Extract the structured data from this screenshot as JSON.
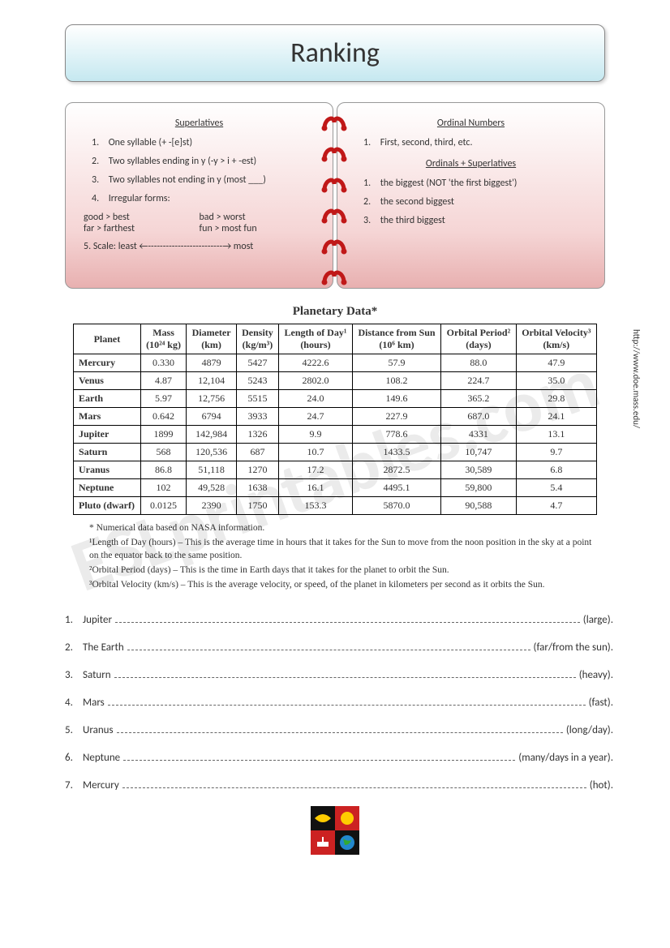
{
  "title": "Ranking",
  "watermark_text": "ESLprintables.com",
  "notebook": {
    "left": {
      "heading": "Superlatives",
      "items": [
        "One syllable (+ -[e]st)",
        "Two syllables ending in y (-y > i + -est)",
        "Two syllables not ending in y (most ___)",
        "Irregular forms:"
      ],
      "irregular": [
        [
          "good > best",
          "bad > worst"
        ],
        [
          "far > farthest",
          "fun > most fun"
        ]
      ],
      "scale_label": "5.",
      "scale_text": "Scale: least ←-------------------------→ most"
    },
    "right": {
      "heading1": "Ordinal Numbers",
      "ord_items": [
        "First, second, third, etc."
      ],
      "heading2": "Ordinals + Superlatives",
      "sup_items": [
        "the biggest (NOT 'the first biggest')",
        "the second biggest",
        "the third biggest"
      ]
    }
  },
  "table": {
    "title": "Planetary Data*",
    "source": "http://www.doe.mass.edu/",
    "columns": [
      {
        "h1": "Planet",
        "h2": ""
      },
      {
        "h1": "Mass",
        "h2": "(10²⁴ kg)"
      },
      {
        "h1": "Diameter",
        "h2": "(km)"
      },
      {
        "h1": "Density",
        "h2": "(kg/m³)"
      },
      {
        "h1": "Length of Day¹",
        "h2": "(hours)"
      },
      {
        "h1": "Distance from Sun",
        "h2": "(10⁶ km)"
      },
      {
        "h1": "Orbital Period²",
        "h2": "(days)"
      },
      {
        "h1": "Orbital Velocity³",
        "h2": "(km/s)"
      }
    ],
    "rows": [
      [
        "Mercury",
        "0.330",
        "4879",
        "5427",
        "4222.6",
        "57.9",
        "88.0",
        "47.9"
      ],
      [
        "Venus",
        "4.87",
        "12,104",
        "5243",
        "2802.0",
        "108.2",
        "224.7",
        "35.0"
      ],
      [
        "Earth",
        "5.97",
        "12,756",
        "5515",
        "24.0",
        "149.6",
        "365.2",
        "29.8"
      ],
      [
        "Mars",
        "0.642",
        "6794",
        "3933",
        "24.7",
        "227.9",
        "687.0",
        "24.1"
      ],
      [
        "Jupiter",
        "1899",
        "142,984",
        "1326",
        "9.9",
        "778.6",
        "4331",
        "13.1"
      ],
      [
        "Saturn",
        "568",
        "120,536",
        "687",
        "10.7",
        "1433.5",
        "10,747",
        "9.7"
      ],
      [
        "Uranus",
        "86.8",
        "51,118",
        "1270",
        "17.2",
        "2872.5",
        "30,589",
        "6.8"
      ],
      [
        "Neptune",
        "102",
        "49,528",
        "1638",
        "16.1",
        "4495.1",
        "59,800",
        "5.4"
      ],
      [
        "Pluto (dwarf)",
        "0.0125",
        "2390",
        "1750",
        "153.3",
        "5870.0",
        "90,588",
        "4.7"
      ]
    ],
    "star_note": "* Numerical data based on NASA information.",
    "footnotes": [
      "¹Length of Day (hours) – This is the average time in hours that it takes for the Sun to move from the noon position in the sky at a point on the equator back to the same position.",
      "²Orbital Period (days) – This is the time in Earth days that it takes for the planet to orbit the Sun.",
      "³Orbital Velocity (km/s) – This is the average velocity, or speed, of the planet in kilometers per second as it orbits the Sun."
    ]
  },
  "questions": [
    {
      "n": "1.",
      "pre": "Jupiter",
      "hint": "(large)."
    },
    {
      "n": "2.",
      "pre": "The Earth",
      "hint": "(far/from the sun)."
    },
    {
      "n": "3.",
      "pre": "Saturn",
      "hint": "(heavy)."
    },
    {
      "n": "4.",
      "pre": "Mars",
      "hint": "(fast)."
    },
    {
      "n": "5.",
      "pre": "Uranus",
      "hint": "(long/day)."
    },
    {
      "n": "6.",
      "pre": "Neptune",
      "hint": "(many/days in a year)."
    },
    {
      "n": "7.",
      "pre": "Mercury",
      "hint": "(hot)."
    }
  ],
  "colors": {
    "ring": "#c01818",
    "icon_bg": "#000000",
    "icon_accent1": "#ff3333",
    "icon_accent2": "#ffcc00",
    "icon_accent3": "#33cc33"
  }
}
